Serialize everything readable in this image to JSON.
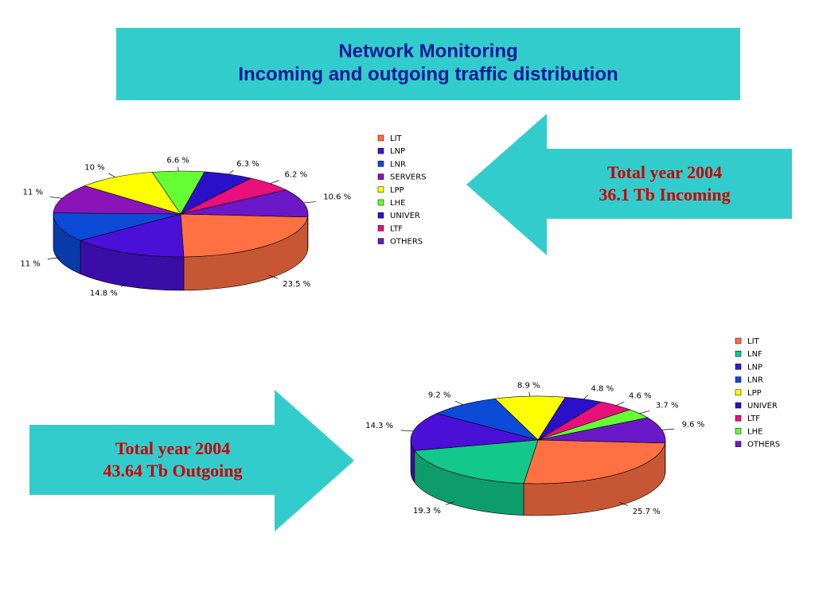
{
  "header": {
    "title_line1": "Network Monitoring",
    "title_line2": "Incoming and outgoing traffic  distribution"
  },
  "incoming_callout": {
    "line1": "Total year 2004",
    "line2": "36.1 Tb Incoming"
  },
  "outgoing_callout": {
    "line1": "Total year 2004",
    "line2": "43.64 Tb Outgoing"
  },
  "colors": {
    "callout_fill": "#33cccc",
    "title_text": "#0a1a99",
    "callout_text": "#cc0000"
  },
  "chart_data": [
    {
      "type": "pie",
      "title": "",
      "legend_placement": "right",
      "categories": [
        "LIT",
        "LNP",
        "LNR",
        "SERVERS",
        "LPP",
        "LHE",
        "UNIVER",
        "LTF",
        "OTHERS"
      ],
      "legend_colors": [
        "#ff7043",
        "#3a14d4",
        "#0c4ad8",
        "#8a14b8",
        "#ffff00",
        "#66ff33",
        "#2a10c8",
        "#e8107a",
        "#6a18c8"
      ],
      "slices": [
        {
          "label": "23.5 %",
          "value": 23.5,
          "color": "#ff7043"
        },
        {
          "label": "14.8 %",
          "value": 14.8,
          "color": "#4a10d8"
        },
        {
          "label": "11 %",
          "value": 11,
          "color": "#0c4ad8"
        },
        {
          "label": "11 %",
          "value": 11,
          "color": "#8a14b8"
        },
        {
          "label": "10 %",
          "value": 10,
          "color": "#ffff00"
        },
        {
          "label": "6.6 %",
          "value": 6.6,
          "color": "#66ff33"
        },
        {
          "label": "6.3 %",
          "value": 6.3,
          "color": "#2a10c8"
        },
        {
          "label": "6.2 %",
          "value": 6.2,
          "color": "#e8107a"
        },
        {
          "label": "10.6 %",
          "value": 10.6,
          "color": "#6a18c8"
        }
      ]
    },
    {
      "type": "pie",
      "title": "",
      "legend_placement": "right",
      "categories": [
        "LIT",
        "LNF",
        "LNP",
        "LNR",
        "LPP",
        "UNIVER",
        "LTF",
        "LHE",
        "OTHERS"
      ],
      "legend_colors": [
        "#ff7043",
        "#12c88a",
        "#3a14d4",
        "#0c4ad8",
        "#ffff00",
        "#2a10c8",
        "#e8107a",
        "#66ff33",
        "#6a18c8"
      ],
      "slices": [
        {
          "label": "25.7 %",
          "value": 25.7,
          "color": "#ff7043"
        },
        {
          "label": "19.3 %",
          "value": 19.3,
          "color": "#12c88a"
        },
        {
          "label": "14.3 %",
          "value": 14.3,
          "color": "#4a10d8"
        },
        {
          "label": "9.2 %",
          "value": 9.2,
          "color": "#0c4ad8"
        },
        {
          "label": "8.9 %",
          "value": 8.9,
          "color": "#ffff00"
        },
        {
          "label": "4.8 %",
          "value": 4.8,
          "color": "#2a10c8"
        },
        {
          "label": "4.6 %",
          "value": 4.6,
          "color": "#e8107a"
        },
        {
          "label": "3.7 %",
          "value": 3.7,
          "color": "#66ff33"
        },
        {
          "label": "9.6 %",
          "value": 9.6,
          "color": "#6a18c8"
        }
      ]
    }
  ]
}
